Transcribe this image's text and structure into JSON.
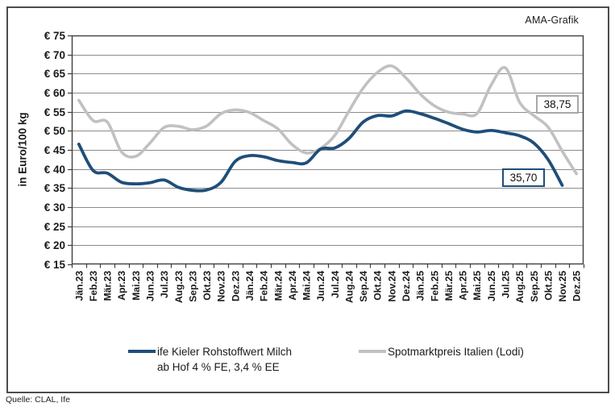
{
  "frame": {
    "ama_label": "AMA-Grafik",
    "source": "Quelle: CLAL, Ife"
  },
  "chart_data": {
    "type": "line",
    "title": "",
    "xlabel": "",
    "ylabel": "in Euro/100 kg",
    "ylim": [
      15,
      75
    ],
    "ytick_step": 5,
    "yticks": [
      "€ 75",
      "€ 70",
      "€ 65",
      "€ 60",
      "€ 55",
      "€ 50",
      "€ 45",
      "€ 40",
      "€ 35",
      "€ 30",
      "€ 25",
      "€ 20",
      "€ 15"
    ],
    "grid": true,
    "smoothed_lines": true,
    "legend_position": "bottom",
    "categories": [
      "Jän.23",
      "Feb.23",
      "Mär.23",
      "Apr.23",
      "Mai.23",
      "Jun.23",
      "Jul.23",
      "Aug.23",
      "Sep.23",
      "Okt.23",
      "Nov.23",
      "Dez.23",
      "Jän.24",
      "Feb.24",
      "Mär.24",
      "Apr.24",
      "Mai.24",
      "Jun.24",
      "Jul.24",
      "Aug.24",
      "Sep.24",
      "Okt.24",
      "Nov.24",
      "Dez.24",
      "Jän.25",
      "Feb.25",
      "Mär.25",
      "Apr.25",
      "Mai.25",
      "Jun.25",
      "Jul.25",
      "Aug.25",
      "Sep.25",
      "Okt.25",
      "Nov.25",
      "Dez.25"
    ],
    "series": [
      {
        "name": "ife Kieler Rohstoffwert Milch ab Hof 4 % FE, 3,4 % EE",
        "legend_lines": [
          "ife Kieler Rohstoffwert Milch",
          "ab Hof 4 % FE, 3,4 % EE"
        ],
        "color": "#1F4E79",
        "end_label": "35,70",
        "last_value_month": "Nov.25",
        "values": [
          46.5,
          39.6,
          38.9,
          36.5,
          36.1,
          36.4,
          37.1,
          35.2,
          34.4,
          34.5,
          36.5,
          42.0,
          43.5,
          43.2,
          42.2,
          41.7,
          41.6,
          45.2,
          45.5,
          48.0,
          52.3,
          54.0,
          53.9,
          55.2,
          54.5,
          53.3,
          51.9,
          50.4,
          49.7,
          50.1,
          49.5,
          48.7,
          46.8,
          42.5,
          35.7,
          null
        ]
      },
      {
        "name": "Spotmarktpreis Italien (Lodi)",
        "legend_lines": [
          "Spotmarktpreis Italien (Lodi)"
        ],
        "color": "#C1C1C1",
        "end_label": "38,75",
        "last_value_month": "Dez.25",
        "values": [
          58.0,
          52.7,
          52.3,
          44.5,
          43.3,
          46.8,
          50.9,
          51.2,
          50.3,
          51.3,
          54.5,
          55.5,
          54.8,
          52.7,
          50.5,
          46.4,
          44.2,
          45.4,
          48.8,
          55.2,
          61.2,
          65.3,
          67.0,
          63.9,
          59.7,
          56.6,
          54.9,
          54.4,
          54.5,
          62.0,
          66.5,
          57.5,
          54.0,
          51.0,
          44.7,
          38.75
        ]
      }
    ],
    "annotation_colors": {
      "grid": "#8c8c8c",
      "axis": "#3f3f3f",
      "text": "#1a1a1a"
    }
  }
}
